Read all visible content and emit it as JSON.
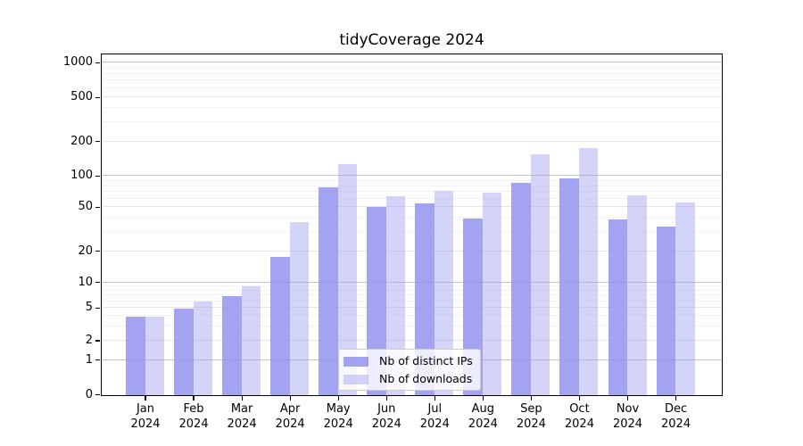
{
  "title": "tidyCoverage 2024",
  "chart_data": {
    "type": "bar",
    "title": "tidyCoverage 2024",
    "months": [
      "Jan",
      "Feb",
      "Mar",
      "Apr",
      "May",
      "Jun",
      "Jul",
      "Aug",
      "Sep",
      "Oct",
      "Nov",
      "Dec"
    ],
    "year": "2024",
    "categories": [
      "Jan 2024",
      "Feb 2024",
      "Mar 2024",
      "Apr 2024",
      "May 2024",
      "Jun 2024",
      "Jul 2024",
      "Aug 2024",
      "Sep 2024",
      "Oct 2024",
      "Nov 2024",
      "Dec 2024"
    ],
    "series": [
      {
        "name": "Nb of distinct IPs",
        "color": "rgba(143,143,238,0.82)",
        "values": [
          4,
          5,
          7,
          18,
          78,
          51,
          55,
          40,
          87,
          96,
          39,
          34
        ]
      },
      {
        "name": "Nb of downloads",
        "color": "rgba(165,165,240,0.48)",
        "values": [
          4,
          6,
          9,
          37,
          129,
          65,
          72,
          70,
          156,
          176,
          66,
          56
        ]
      }
    ],
    "yscale": "log-like (symlog, linear below 1)",
    "yticks": [
      0,
      1,
      2,
      5,
      10,
      20,
      50,
      100,
      200,
      500,
      1000
    ],
    "ylim": [
      0,
      1200
    ],
    "grid": true,
    "legend_position": "inside plot, lower center"
  }
}
